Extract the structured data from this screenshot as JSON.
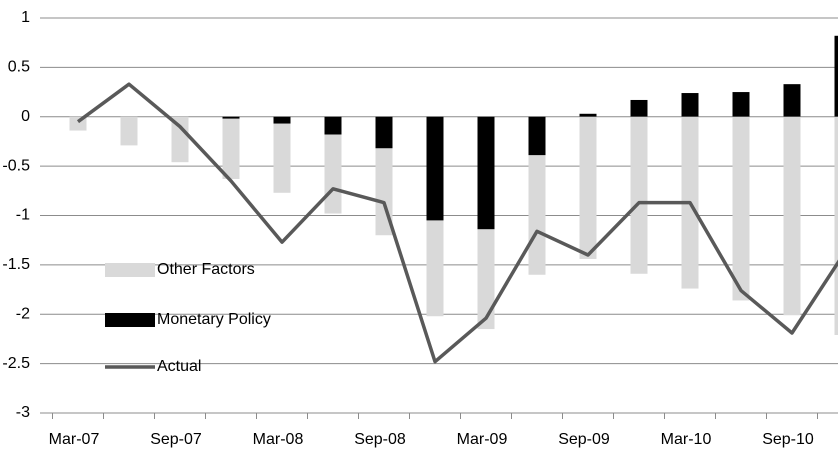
{
  "chart_data": {
    "type": "bar",
    "categories": [
      "Mar-07",
      null,
      "Sep-07",
      null,
      "Mar-08",
      null,
      "Sep-08",
      null,
      "Mar-09",
      null,
      "Sep-09",
      null,
      "Mar-10",
      null,
      "Sep-10",
      null
    ],
    "series": [
      {
        "name": "Other Factors",
        "color": "#d9d9d9",
        "values": [
          -0.14,
          -0.29,
          -0.46,
          -0.61,
          -0.7,
          -0.8,
          -0.88,
          -0.97,
          -1.01,
          -1.21,
          -1.44,
          -1.59,
          -1.74,
          -1.86,
          -2.01,
          -2.21
        ]
      },
      {
        "name": "Monetary Policy",
        "color": "#000000",
        "values": [
          0,
          0,
          0,
          -0.02,
          -0.07,
          -0.18,
          -0.32,
          -1.05,
          -1.14,
          -0.39,
          0.03,
          0.17,
          0.24,
          0.25,
          0.33,
          0.82
        ]
      },
      {
        "name": "Actual",
        "type": "line",
        "color": "#595959",
        "values": [
          -0.05,
          0.33,
          -0.1,
          -0.65,
          -1.27,
          -0.73,
          -0.87,
          -2.48,
          -2.04,
          -1.16,
          -1.4,
          -0.87,
          -0.87,
          -1.76,
          -2.19,
          -1.4
        ]
      }
    ],
    "ylim": [
      -3,
      1
    ],
    "yticks": [
      1,
      0.5,
      0,
      -0.5,
      -1,
      -1.5,
      -2,
      -2.5,
      -3
    ],
    "grid": true,
    "legend": "lower left"
  }
}
